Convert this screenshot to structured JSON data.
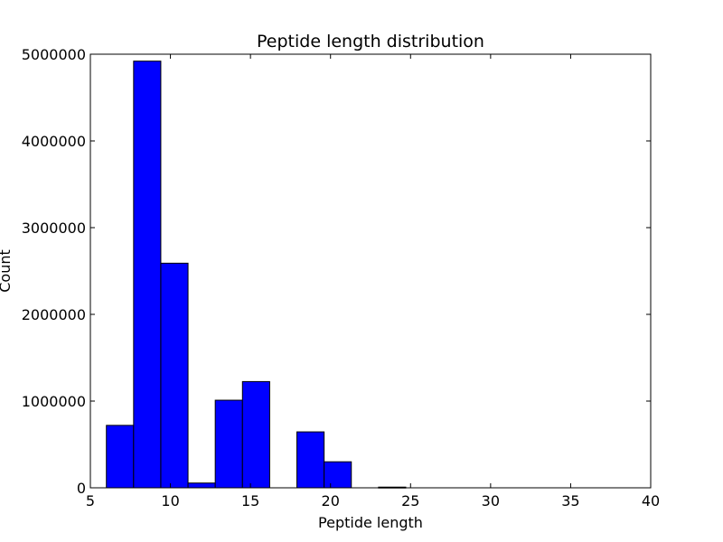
{
  "chart_data": {
    "type": "bar",
    "title": "Peptide length distribution",
    "xlabel": "Peptide length",
    "ylabel": "Count",
    "xlim": [
      5,
      40
    ],
    "ylim": [
      0,
      5000000
    ],
    "xticks": [
      5,
      10,
      15,
      20,
      25,
      30,
      35,
      40
    ],
    "yticks": [
      0,
      1000000,
      2000000,
      3000000,
      4000000,
      5000000
    ],
    "grid": false,
    "legend": "none",
    "bar_color": "#0000ff",
    "bins": [
      {
        "x0": 6.0,
        "x1": 7.7,
        "value": 720000
      },
      {
        "x0": 7.7,
        "x1": 9.4,
        "value": 4920000
      },
      {
        "x0": 9.4,
        "x1": 11.1,
        "value": 2590000
      },
      {
        "x0": 11.1,
        "x1": 12.8,
        "value": 55000
      },
      {
        "x0": 12.8,
        "x1": 14.5,
        "value": 1010000
      },
      {
        "x0": 14.5,
        "x1": 16.2,
        "value": 1225000
      },
      {
        "x0": 16.2,
        "x1": 17.9,
        "value": 0
      },
      {
        "x0": 17.9,
        "x1": 19.6,
        "value": 645000
      },
      {
        "x0": 19.6,
        "x1": 21.3,
        "value": 300000
      },
      {
        "x0": 21.3,
        "x1": 23.0,
        "value": 0
      },
      {
        "x0": 23.0,
        "x1": 24.7,
        "value": 8000
      },
      {
        "x0": 24.7,
        "x1": 26.4,
        "value": 0
      },
      {
        "x0": 26.4,
        "x1": 28.1,
        "value": 0
      },
      {
        "x0": 28.1,
        "x1": 29.8,
        "value": 0
      },
      {
        "x0": 29.8,
        "x1": 31.5,
        "value": 0
      },
      {
        "x0": 31.5,
        "x1": 33.2,
        "value": 0
      },
      {
        "x0": 33.2,
        "x1": 34.9,
        "value": 0
      },
      {
        "x0": 34.9,
        "x1": 36.6,
        "value": 0
      },
      {
        "x0": 36.6,
        "x1": 38.3,
        "value": 0
      },
      {
        "x0": 38.3,
        "x1": 40.0,
        "value": 0
      }
    ]
  }
}
